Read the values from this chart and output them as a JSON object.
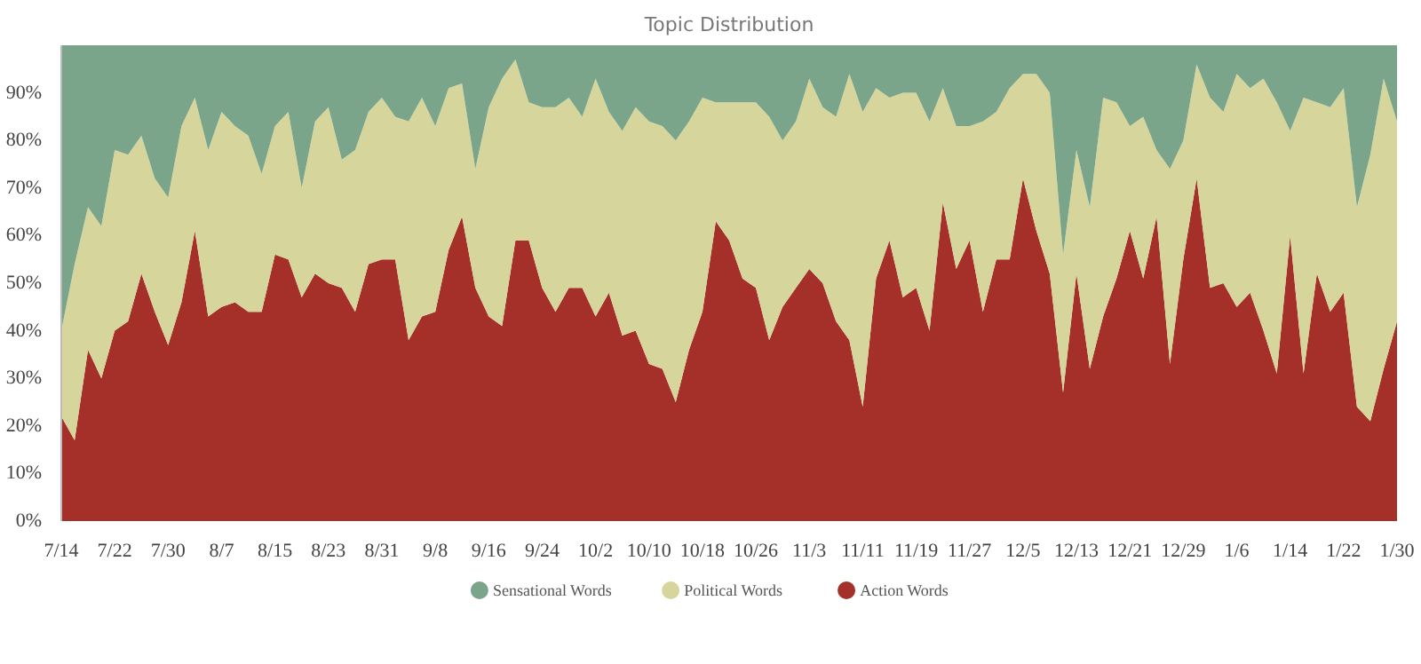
{
  "chart_data": {
    "type": "area",
    "title": "Topic Distribution",
    "stacked": true,
    "legend": "bottom",
    "categories": [
      "7/14",
      null,
      null,
      null,
      "7/22",
      null,
      null,
      null,
      "7/30",
      null,
      null,
      null,
      "8/7",
      null,
      null,
      null,
      "8/15",
      null,
      null,
      null,
      "8/23",
      null,
      null,
      null,
      "8/31",
      null,
      null,
      null,
      "9/8",
      null,
      null,
      null,
      "9/16",
      null,
      null,
      null,
      "9/24",
      null,
      null,
      null,
      "10/2",
      null,
      null,
      null,
      "10/10",
      null,
      null,
      null,
      "10/18",
      null,
      null,
      null,
      "10/26",
      null,
      null,
      null,
      "11/3",
      null,
      null,
      null,
      "11/11",
      null,
      null,
      null,
      "11/19",
      null,
      null,
      null,
      "11/27",
      null,
      null,
      null,
      "12/5",
      null,
      null,
      null,
      "12/13",
      null,
      null,
      null,
      "12/21",
      null,
      null,
      null,
      "12/29",
      null,
      null,
      null,
      "1/6",
      null,
      null,
      null,
      "1/14",
      null,
      null,
      null,
      "1/22",
      null,
      null,
      null,
      "1/30"
    ],
    "series": [
      {
        "name": "Action Words",
        "color": "#a5302a",
        "values": [
          22,
          17,
          36,
          30,
          40,
          42,
          52,
          44,
          37,
          46,
          61,
          43,
          45,
          46,
          44,
          44,
          56,
          55,
          47,
          52,
          50,
          49,
          44,
          54,
          55,
          55,
          38,
          43,
          44,
          57,
          64,
          49,
          43,
          41,
          59,
          59,
          49,
          44,
          49,
          49,
          43,
          48,
          39,
          40,
          33,
          32,
          25,
          36,
          44,
          63,
          59,
          51,
          49,
          38,
          45,
          49,
          53,
          50,
          42,
          38,
          24,
          51,
          59,
          47,
          49,
          40,
          67,
          53,
          59,
          44,
          55,
          55,
          72,
          61,
          52,
          27,
          52,
          32,
          43,
          51,
          61,
          51,
          64,
          33,
          55,
          72,
          49,
          50,
          45,
          48,
          40,
          31,
          60,
          31,
          52,
          44,
          48,
          24,
          21,
          32,
          42
        ]
      },
      {
        "name": "Political Words",
        "color": "#d6d59b",
        "values": [
          18,
          37,
          30,
          32,
          38,
          35,
          29,
          28,
          31,
          37,
          28,
          35,
          41,
          37,
          37,
          29,
          27,
          31,
          23,
          32,
          37,
          27,
          34,
          32,
          34,
          30,
          46,
          46,
          39,
          34,
          28,
          25,
          44,
          52,
          38,
          29,
          38,
          43,
          40,
          36,
          50,
          38,
          43,
          47,
          51,
          51,
          55,
          48,
          45,
          25,
          29,
          37,
          39,
          47,
          35,
          35,
          40,
          37,
          43,
          56,
          62,
          40,
          30,
          43,
          41,
          44,
          24,
          30,
          24,
          40,
          31,
          36,
          22,
          33,
          38,
          29,
          26,
          34,
          46,
          37,
          22,
          34,
          14,
          41,
          25,
          24,
          40,
          36,
          49,
          43,
          53,
          57,
          22,
          58,
          36,
          43,
          43,
          42,
          56,
          61,
          42
        ]
      },
      {
        "name": "Sensational Words",
        "color": "#7aa58a",
        "values": [
          60,
          46,
          34,
          38,
          22,
          23,
          19,
          28,
          32,
          17,
          11,
          22,
          14,
          17,
          19,
          27,
          17,
          14,
          30,
          16,
          13,
          24,
          22,
          14,
          11,
          15,
          16,
          11,
          17,
          9,
          8,
          26,
          13,
          7,
          3,
          12,
          13,
          13,
          11,
          15,
          7,
          14,
          18,
          13,
          16,
          17,
          20,
          16,
          11,
          12,
          12,
          12,
          12,
          15,
          20,
          16,
          7,
          13,
          15,
          6,
          14,
          9,
          11,
          10,
          10,
          16,
          9,
          17,
          17,
          16,
          14,
          9,
          6,
          6,
          10,
          44,
          22,
          34,
          11,
          12,
          17,
          15,
          22,
          26,
          20,
          4,
          11,
          14,
          6,
          9,
          7,
          12,
          18,
          11,
          12,
          13,
          9,
          34,
          23,
          7,
          16
        ]
      }
    ],
    "ylim": [
      0,
      100
    ],
    "yticks": [
      {
        "value": 0,
        "label": "0%"
      },
      {
        "value": 10,
        "label": "10%"
      },
      {
        "value": 20,
        "label": "20%"
      },
      {
        "value": 30,
        "label": "30%"
      },
      {
        "value": 40,
        "label": "40%"
      },
      {
        "value": 50,
        "label": "50%"
      },
      {
        "value": 60,
        "label": "60%"
      },
      {
        "value": 70,
        "label": "70%"
      },
      {
        "value": 80,
        "label": "80%"
      },
      {
        "value": 90,
        "label": "90%"
      }
    ]
  }
}
